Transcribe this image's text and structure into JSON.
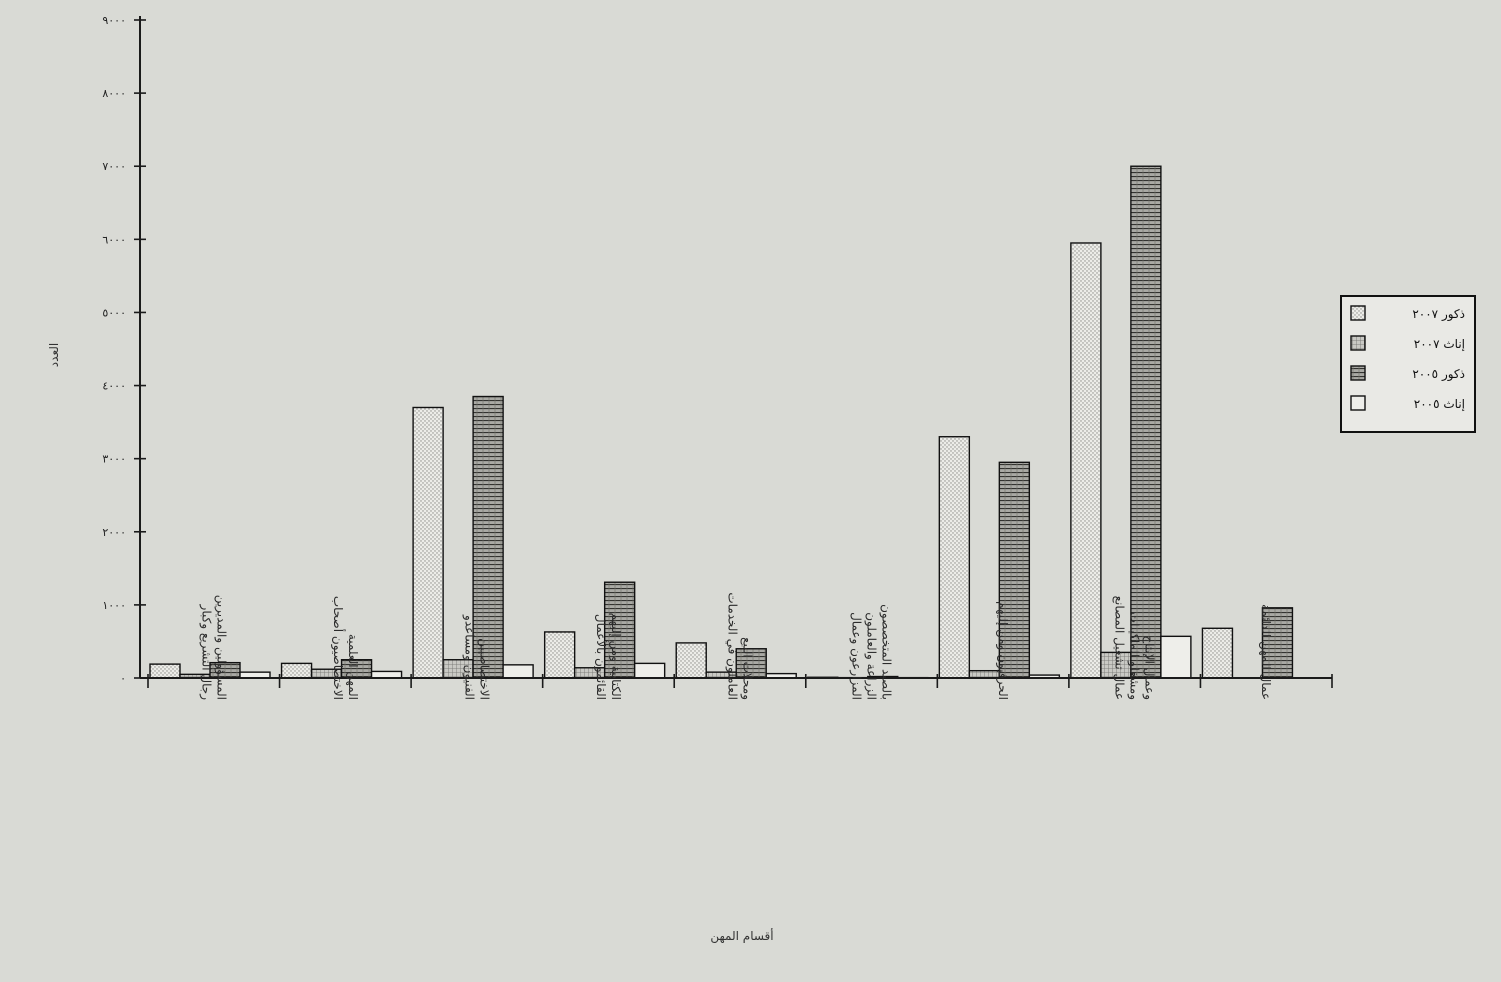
{
  "chart_data": {
    "type": "bar",
    "title": "",
    "ylabel": "العدد",
    "xlabel": "أقسام المهن",
    "ylim": [
      0,
      9000
    ],
    "yticks": [
      0,
      1000,
      2000,
      3000,
      4000,
      5000,
      6000,
      7000,
      8000,
      9000
    ],
    "ytick_labels": [
      "٠",
      "١٠٠٠",
      "٢٠٠٠",
      "٣٠٠٠",
      "٤٠٠٠",
      "٥٠٠٠",
      "٦٠٠٠",
      "٧٠٠٠",
      "٨٠٠٠",
      "٩٠٠٠"
    ],
    "grid": false,
    "legend_position": "right",
    "categories": [
      "رجال التشريع وكبار المسؤولين والمديرين",
      "الاختصاصيون أصحاب المهن العلمية",
      "الفنيون ومساعدو الاختصاصيين",
      "القائمون بالأعمال الكتابية ومن إليهم",
      "العاملون في الخدمات ومحلات البيع",
      "المزارعون وعمال الزراعة والعاملون بالصيد المتخصصون",
      "الحرفيون ومن إليهم",
      "عمال تشغيل المصانع ومشغلو الماكينات وعمال الإنتاج",
      "عمال المهن الدائمة"
    ],
    "series": [
      {
        "name": "ذكور ٢٠٠٧",
        "values": [
          190,
          200,
          3700,
          630,
          480,
          10,
          3300,
          5950,
          680
        ],
        "pattern": "dots"
      },
      {
        "name": "إناث ٢٠٠٧",
        "values": [
          50,
          120,
          250,
          140,
          80,
          5,
          100,
          350,
          0
        ],
        "pattern": "grid"
      },
      {
        "name": "ذكور ٢٠٠٥",
        "values": [
          210,
          250,
          3850,
          1310,
          400,
          20,
          2950,
          7000,
          960
        ],
        "pattern": "stripes"
      },
      {
        "name": "إناث ٢٠٠٥",
        "values": [
          80,
          90,
          180,
          200,
          60,
          5,
          40,
          570,
          0
        ],
        "pattern": "plain"
      }
    ],
    "colors": {
      "background": "#d9dad5",
      "bar_fill": "#eeeeea",
      "axis": "#1a1a1a"
    }
  }
}
